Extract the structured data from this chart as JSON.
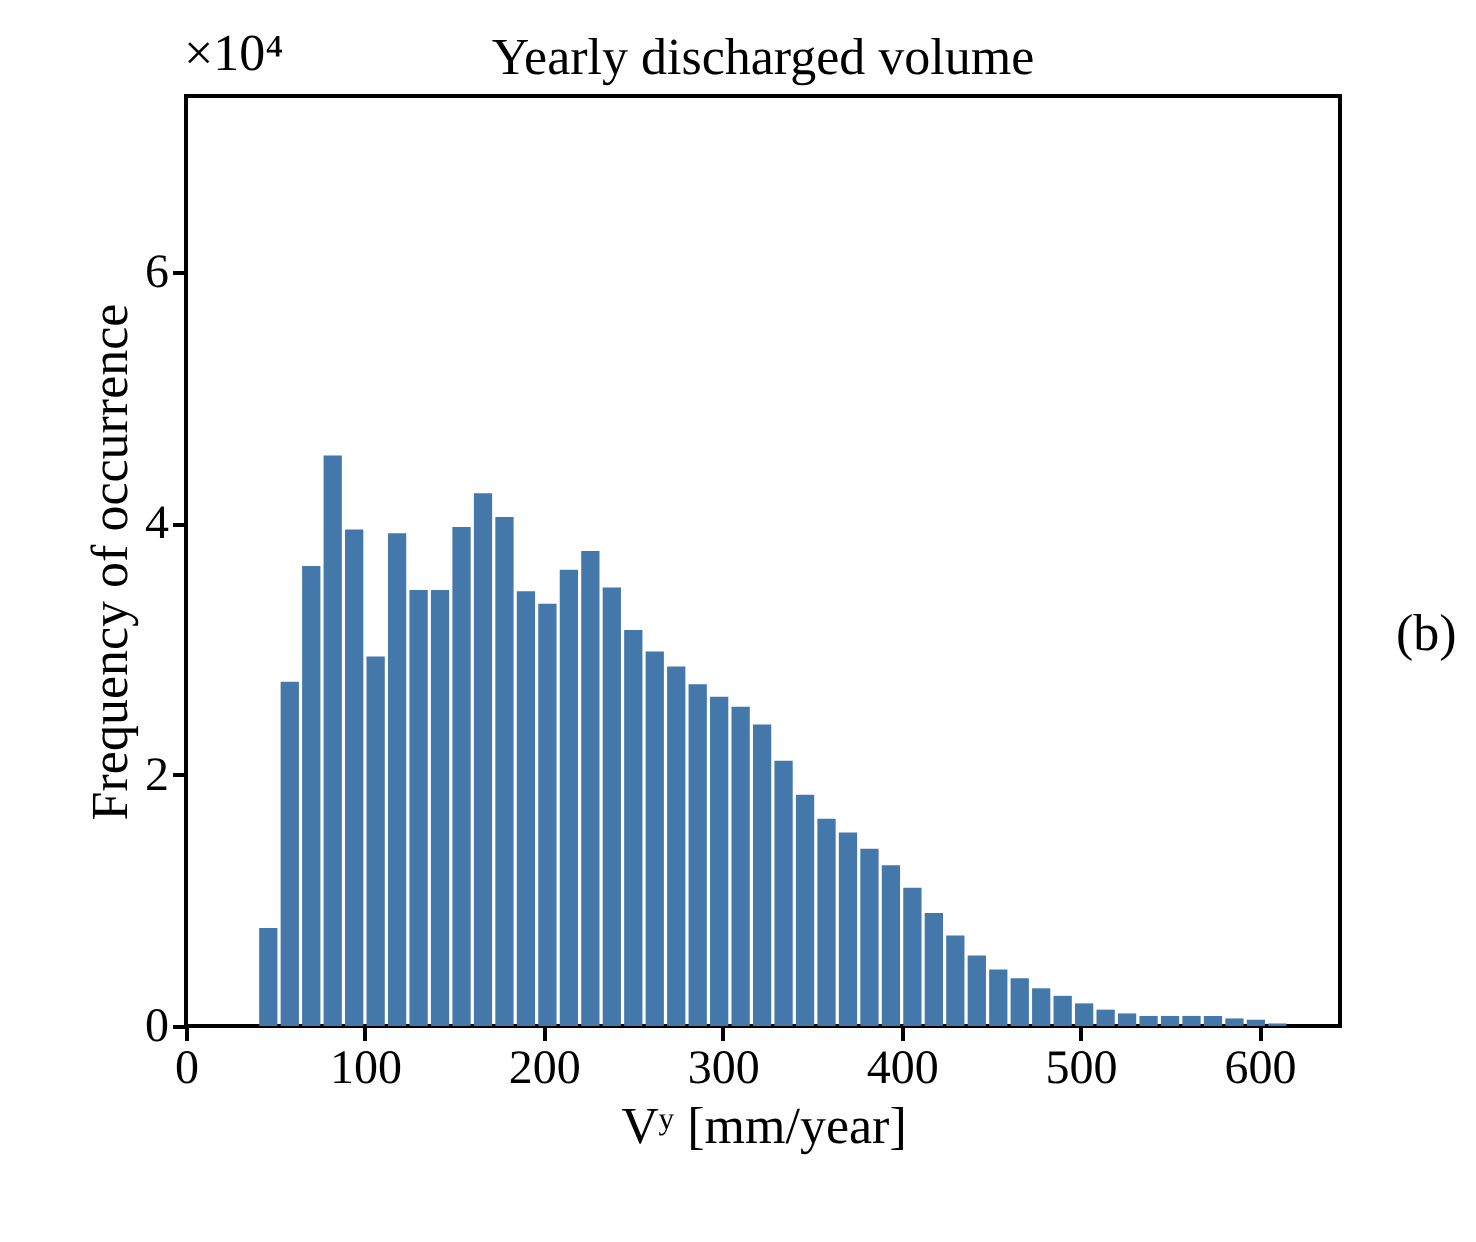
{
  "chart_data": {
    "type": "histogram",
    "title": "Yearly discharged volume",
    "xlabel": "Vʸ [mm/year]",
    "ylabel": "Frequency of occurrence",
    "annotations": [
      "×10⁴",
      "(b)"
    ],
    "bins": [
      40,
      52,
      64,
      76,
      88,
      100,
      112,
      124,
      136,
      148,
      160,
      172,
      184,
      196,
      208,
      220,
      232,
      244,
      256,
      268,
      280,
      292,
      304,
      316,
      328,
      340,
      352,
      364,
      376,
      388,
      400,
      412,
      424,
      436,
      448,
      460,
      472,
      484,
      496,
      508,
      520,
      532,
      544,
      556,
      568,
      580,
      592,
      604,
      616
    ],
    "values": [
      0.78,
      2.74,
      3.66,
      4.54,
      3.95,
      2.94,
      3.92,
      3.47,
      3.47,
      3.97,
      4.24,
      4.05,
      3.46,
      3.36,
      3.63,
      3.78,
      3.49,
      3.15,
      2.98,
      2.86,
      2.72,
      2.62,
      2.54,
      2.4,
      2.11,
      1.84,
      1.65,
      1.54,
      1.41,
      1.28,
      1.1,
      0.9,
      0.72,
      0.56,
      0.45,
      0.38,
      0.3,
      0.24,
      0.18,
      0.13,
      0.1,
      0.08,
      0.08,
      0.08,
      0.08,
      0.06,
      0.05,
      0.02
    ],
    "color": "#4477aa",
    "xlim": [
      0,
      645
    ],
    "ylim": [
      0,
      7.4
    ],
    "xticks": [
      0,
      100,
      200,
      300,
      400,
      500,
      600
    ],
    "yticks": [
      0,
      2,
      4,
      6
    ],
    "grid": false
  }
}
